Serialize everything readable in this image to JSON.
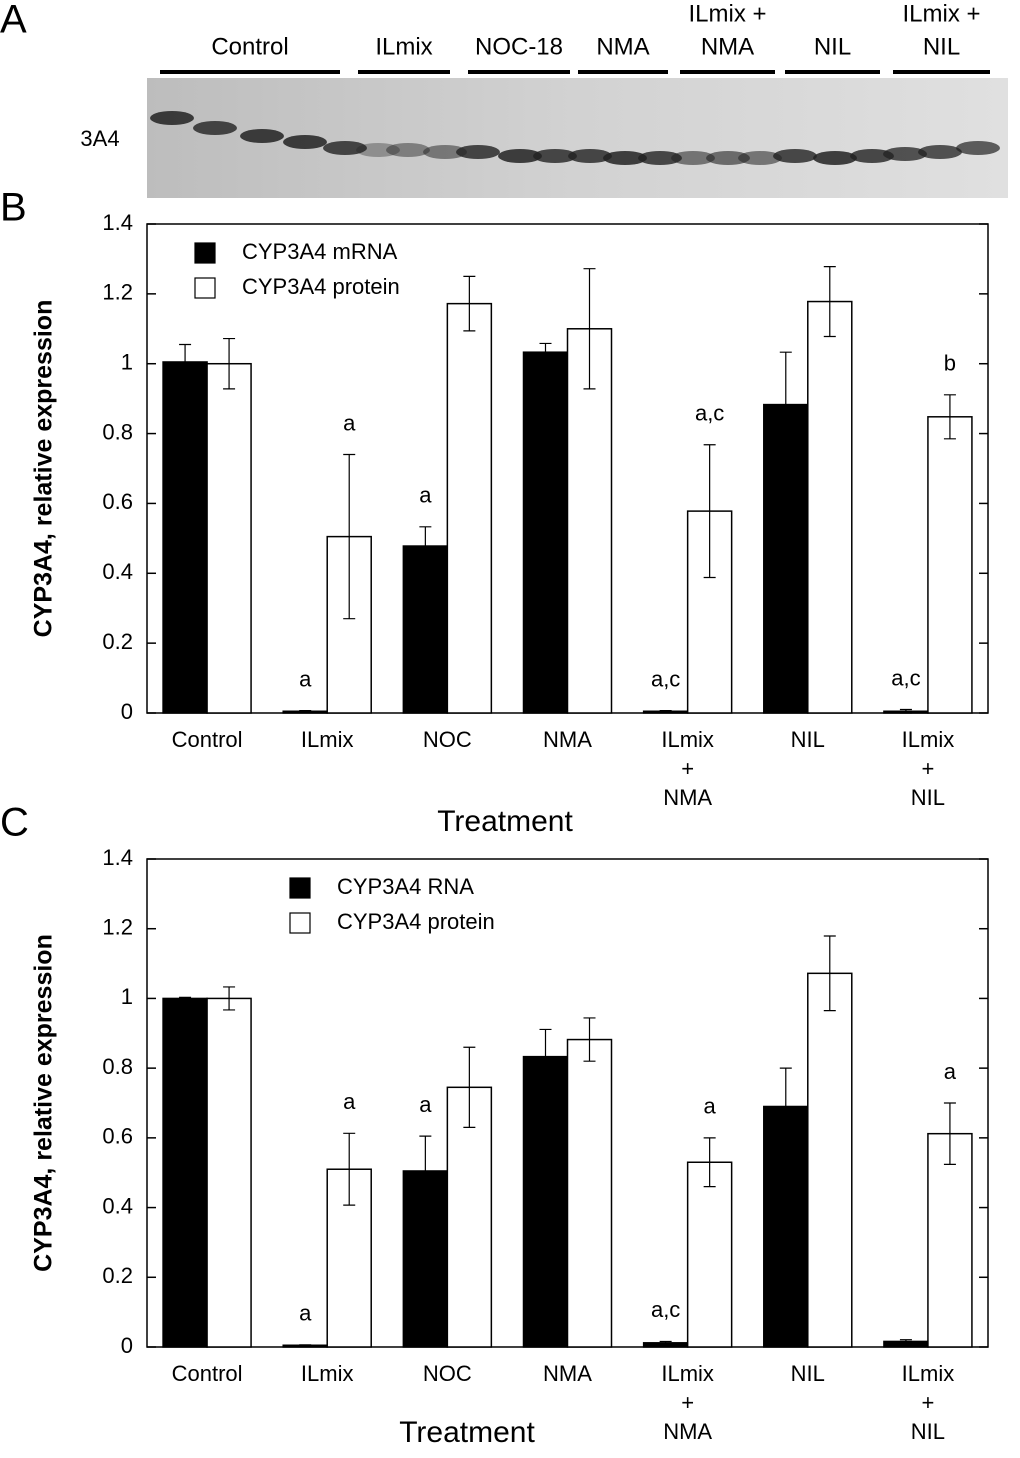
{
  "panel_a": {
    "label": "A",
    "groups": [
      [
        "Control"
      ],
      [
        "ILmix"
      ],
      [
        "NOC-18"
      ],
      [
        "NMA"
      ],
      [
        "ILmix +",
        "NMA"
      ],
      [
        "NIL"
      ],
      [
        "ILmix +",
        "NIL"
      ]
    ],
    "band_label": "3A4"
  },
  "chart_data": [
    {
      "type": "bar",
      "panel": "B",
      "y_label": "CYP3A4, relative expression",
      "x_label": "Treatment",
      "categories": [
        [
          "Control"
        ],
        [
          "ILmix"
        ],
        [
          "NOC"
        ],
        [
          "NMA"
        ],
        [
          "ILmix",
          "+",
          "NMA"
        ],
        [
          "NIL"
        ],
        [
          "ILmix",
          "+",
          "NIL"
        ]
      ],
      "series": [
        {
          "name": "CYP3A4 mRNA",
          "color": "#000000",
          "values": [
            1.005,
            0.005,
            0.478,
            1.033,
            0.005,
            0.883,
            0.005
          ],
          "errors": [
            0.05,
            0.002,
            0.055,
            0.025,
            0.002,
            0.15,
            0.005
          ],
          "annotations": [
            null,
            "a",
            "a",
            null,
            "a,c",
            null,
            "a,c"
          ]
        },
        {
          "name": "CYP3A4 protein",
          "color": "#ffffff",
          "values": [
            1.0,
            0.505,
            1.172,
            1.1,
            0.578,
            1.178,
            0.848
          ],
          "errors": [
            0.072,
            0.235,
            0.078,
            0.172,
            0.19,
            0.1,
            0.063
          ],
          "annotations": [
            null,
            "a",
            null,
            null,
            "a,c",
            null,
            "b"
          ]
        }
      ],
      "ylim": [
        0,
        1.4
      ],
      "yticks": [
        0,
        0.2,
        0.4,
        0.6,
        0.8,
        1,
        1.2,
        1.4
      ],
      "legend": "upper left"
    },
    {
      "type": "bar",
      "panel": "C",
      "y_label": "CYP3A4, relative expression",
      "x_label": "Treatment",
      "categories": [
        [
          "Control"
        ],
        [
          "ILmix"
        ],
        [
          "NOC"
        ],
        [
          "NMA"
        ],
        [
          "ILmix",
          "+",
          "NMA"
        ],
        [
          "NIL"
        ],
        [
          "ILmix",
          "+",
          "NIL"
        ]
      ],
      "series": [
        {
          "name": "CYP3A4 RNA",
          "color": "#000000",
          "values": [
            1.0,
            0.005,
            0.505,
            0.833,
            0.012,
            0.69,
            0.016
          ],
          "errors": [
            0.003,
            0.001,
            0.1,
            0.078,
            0.004,
            0.11,
            0.005
          ],
          "annotations": [
            null,
            "a",
            "a",
            null,
            "a,c",
            null,
            null
          ]
        },
        {
          "name": "CYP3A4 protein",
          "color": "#ffffff",
          "values": [
            1.0,
            0.51,
            0.745,
            0.882,
            0.53,
            1.072,
            0.612
          ],
          "errors": [
            0.033,
            0.103,
            0.115,
            0.062,
            0.07,
            0.107,
            0.088
          ],
          "annotations": [
            null,
            "a",
            null,
            null,
            "a",
            null,
            "a"
          ]
        }
      ],
      "ylim": [
        0,
        1.4
      ],
      "yticks": [
        0,
        0.2,
        0.4,
        0.6,
        0.8,
        1,
        1.2,
        1.4
      ],
      "legend": "upper center"
    }
  ]
}
